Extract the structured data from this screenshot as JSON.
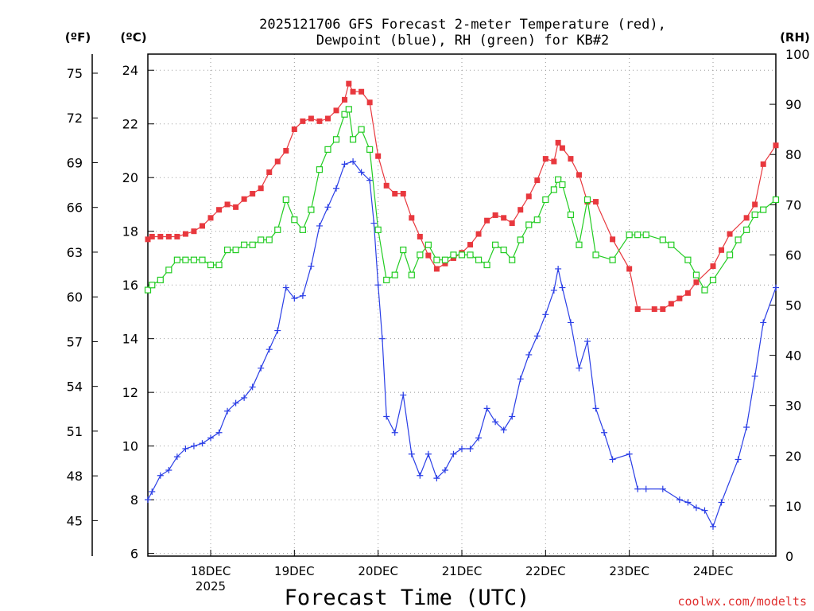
{
  "chart_data": {
    "type": "line",
    "title_line1": "2025121706 GFS Forecast 2-meter Temperature (red),",
    "title_line2": "Dewpoint (blue), RH (green) for KB#2",
    "xlabel": "Forecast Time (UTC)",
    "credit": "coolwx.com/modelts",
    "unit_f": "(ºF)",
    "unit_c": "(ºC)",
    "unit_rh": "(RH)",
    "x_ticks": [
      {
        "x": 18,
        "label": "18DEC",
        "sub": "2025"
      },
      {
        "x": 19,
        "label": "19DEC",
        "sub": ""
      },
      {
        "x": 20,
        "label": "20DEC",
        "sub": ""
      },
      {
        "x": 21,
        "label": "21DEC",
        "sub": ""
      },
      {
        "x": 22,
        "label": "22DEC",
        "sub": ""
      },
      {
        "x": 23,
        "label": "23DEC",
        "sub": ""
      },
      {
        "x": 24,
        "label": "24DEC",
        "sub": ""
      }
    ],
    "x_range": [
      17.25,
      24.75
    ],
    "c_ticks": [
      "6",
      "8",
      "10",
      "12",
      "14",
      "16",
      "18",
      "20",
      "22",
      "24"
    ],
    "c_range": [
      5.9,
      24.6
    ],
    "f_ticks": [
      "45",
      "48",
      "51",
      "54",
      "57",
      "60",
      "63",
      "66",
      "69",
      "72",
      "75"
    ],
    "rh_ticks": [
      "0",
      "10",
      "20",
      "30",
      "40",
      "50",
      "60",
      "70",
      "80",
      "90",
      "100"
    ],
    "rh_range": [
      0,
      100
    ],
    "colors": {
      "temperature": "#e8383e",
      "dewpoint": "#2a3ee6",
      "rh": "#22cc22"
    },
    "series": [
      {
        "name": "Temperature (red)",
        "units": "C",
        "points": [
          [
            17.25,
            17.7
          ],
          [
            17.3,
            17.8
          ],
          [
            17.4,
            17.8
          ],
          [
            17.5,
            17.8
          ],
          [
            17.6,
            17.8
          ],
          [
            17.7,
            17.9
          ],
          [
            17.8,
            18.0
          ],
          [
            17.9,
            18.2
          ],
          [
            18.0,
            18.5
          ],
          [
            18.1,
            18.8
          ],
          [
            18.2,
            19.0
          ],
          [
            18.3,
            18.9
          ],
          [
            18.4,
            19.2
          ],
          [
            18.5,
            19.4
          ],
          [
            18.6,
            19.6
          ],
          [
            18.7,
            20.2
          ],
          [
            18.8,
            20.6
          ],
          [
            18.9,
            21.0
          ],
          [
            19.0,
            21.8
          ],
          [
            19.1,
            22.1
          ],
          [
            19.2,
            22.2
          ],
          [
            19.3,
            22.1
          ],
          [
            19.4,
            22.2
          ],
          [
            19.5,
            22.5
          ],
          [
            19.6,
            22.9
          ],
          [
            19.65,
            23.5
          ],
          [
            19.7,
            23.2
          ],
          [
            19.8,
            23.2
          ],
          [
            19.9,
            22.8
          ],
          [
            20.0,
            20.8
          ],
          [
            20.1,
            19.7
          ],
          [
            20.2,
            19.4
          ],
          [
            20.3,
            19.4
          ],
          [
            20.4,
            18.5
          ],
          [
            20.5,
            17.8
          ],
          [
            20.6,
            17.1
          ],
          [
            20.7,
            16.6
          ],
          [
            20.8,
            16.8
          ],
          [
            20.9,
            17.0
          ],
          [
            21.0,
            17.2
          ],
          [
            21.1,
            17.5
          ],
          [
            21.2,
            17.9
          ],
          [
            21.3,
            18.4
          ],
          [
            21.4,
            18.6
          ],
          [
            21.5,
            18.5
          ],
          [
            21.6,
            18.3
          ],
          [
            21.7,
            18.8
          ],
          [
            21.8,
            19.3
          ],
          [
            21.9,
            19.9
          ],
          [
            22.0,
            20.7
          ],
          [
            22.1,
            20.6
          ],
          [
            22.15,
            21.3
          ],
          [
            22.2,
            21.1
          ],
          [
            22.3,
            20.7
          ],
          [
            22.4,
            20.1
          ],
          [
            22.5,
            19.1
          ],
          [
            22.6,
            19.1
          ],
          [
            22.8,
            17.7
          ],
          [
            23.0,
            16.6
          ],
          [
            23.1,
            15.1
          ],
          [
            23.3,
            15.1
          ],
          [
            23.4,
            15.1
          ],
          [
            23.5,
            15.3
          ],
          [
            23.6,
            15.5
          ],
          [
            23.7,
            15.7
          ],
          [
            23.8,
            16.1
          ],
          [
            24.0,
            16.7
          ],
          [
            24.1,
            17.3
          ],
          [
            24.2,
            17.9
          ],
          [
            24.4,
            18.5
          ],
          [
            24.5,
            19.0
          ],
          [
            24.6,
            20.5
          ],
          [
            24.75,
            21.2
          ]
        ]
      },
      {
        "name": "Dewpoint (blue)",
        "units": "C",
        "points": [
          [
            17.25,
            8.0
          ],
          [
            17.3,
            8.3
          ],
          [
            17.4,
            8.9
          ],
          [
            17.5,
            9.1
          ],
          [
            17.6,
            9.6
          ],
          [
            17.7,
            9.9
          ],
          [
            17.8,
            10.0
          ],
          [
            17.9,
            10.1
          ],
          [
            18.0,
            10.3
          ],
          [
            18.1,
            10.5
          ],
          [
            18.2,
            11.3
          ],
          [
            18.3,
            11.6
          ],
          [
            18.4,
            11.8
          ],
          [
            18.5,
            12.2
          ],
          [
            18.6,
            12.9
          ],
          [
            18.7,
            13.6
          ],
          [
            18.8,
            14.3
          ],
          [
            18.9,
            15.9
          ],
          [
            19.0,
            15.5
          ],
          [
            19.1,
            15.6
          ],
          [
            19.2,
            16.7
          ],
          [
            19.3,
            18.2
          ],
          [
            19.4,
            18.9
          ],
          [
            19.5,
            19.6
          ],
          [
            19.6,
            20.5
          ],
          [
            19.7,
            20.6
          ],
          [
            19.8,
            20.2
          ],
          [
            19.9,
            19.9
          ],
          [
            19.95,
            18.3
          ],
          [
            20.0,
            16.0
          ],
          [
            20.05,
            14.0
          ],
          [
            20.1,
            11.1
          ],
          [
            20.2,
            10.5
          ],
          [
            20.3,
            11.9
          ],
          [
            20.4,
            9.7
          ],
          [
            20.5,
            8.9
          ],
          [
            20.6,
            9.7
          ],
          [
            20.7,
            8.8
          ],
          [
            20.8,
            9.1
          ],
          [
            20.9,
            9.7
          ],
          [
            21.0,
            9.9
          ],
          [
            21.1,
            9.9
          ],
          [
            21.2,
            10.3
          ],
          [
            21.3,
            11.4
          ],
          [
            21.4,
            10.9
          ],
          [
            21.5,
            10.6
          ],
          [
            21.6,
            11.1
          ],
          [
            21.7,
            12.5
          ],
          [
            21.8,
            13.4
          ],
          [
            21.9,
            14.1
          ],
          [
            22.0,
            14.9
          ],
          [
            22.1,
            15.8
          ],
          [
            22.15,
            16.6
          ],
          [
            22.2,
            15.9
          ],
          [
            22.3,
            14.6
          ],
          [
            22.4,
            12.9
          ],
          [
            22.5,
            13.9
          ],
          [
            22.6,
            11.4
          ],
          [
            22.7,
            10.5
          ],
          [
            22.8,
            9.5
          ],
          [
            23.0,
            9.7
          ],
          [
            23.1,
            8.4
          ],
          [
            23.2,
            8.4
          ],
          [
            23.4,
            8.4
          ],
          [
            23.6,
            8.0
          ],
          [
            23.7,
            7.9
          ],
          [
            23.8,
            7.7
          ],
          [
            23.9,
            7.6
          ],
          [
            24.0,
            7.0
          ],
          [
            24.1,
            7.9
          ],
          [
            24.3,
            9.5
          ],
          [
            24.4,
            10.7
          ],
          [
            24.5,
            12.6
          ],
          [
            24.6,
            14.6
          ],
          [
            24.75,
            15.9
          ]
        ]
      },
      {
        "name": "RH (green)",
        "units": "%",
        "points": [
          [
            17.25,
            53
          ],
          [
            17.3,
            54
          ],
          [
            17.4,
            55
          ],
          [
            17.5,
            57
          ],
          [
            17.6,
            59
          ],
          [
            17.7,
            59
          ],
          [
            17.8,
            59
          ],
          [
            17.9,
            59
          ],
          [
            18.0,
            58
          ],
          [
            18.1,
            58
          ],
          [
            18.2,
            61
          ],
          [
            18.3,
            61
          ],
          [
            18.4,
            62
          ],
          [
            18.5,
            62
          ],
          [
            18.6,
            63
          ],
          [
            18.7,
            63
          ],
          [
            18.8,
            65
          ],
          [
            18.9,
            71
          ],
          [
            19.0,
            67
          ],
          [
            19.1,
            65
          ],
          [
            19.2,
            69
          ],
          [
            19.3,
            77
          ],
          [
            19.4,
            81
          ],
          [
            19.5,
            83
          ],
          [
            19.6,
            88
          ],
          [
            19.65,
            89
          ],
          [
            19.7,
            83
          ],
          [
            19.8,
            85
          ],
          [
            19.9,
            81
          ],
          [
            20.0,
            65
          ],
          [
            20.1,
            55
          ],
          [
            20.2,
            56
          ],
          [
            20.3,
            61
          ],
          [
            20.4,
            56
          ],
          [
            20.5,
            60
          ],
          [
            20.6,
            62
          ],
          [
            20.7,
            59
          ],
          [
            20.8,
            59
          ],
          [
            20.9,
            60
          ],
          [
            21.0,
            60
          ],
          [
            21.1,
            60
          ],
          [
            21.2,
            59
          ],
          [
            21.3,
            58
          ],
          [
            21.4,
            62
          ],
          [
            21.5,
            61
          ],
          [
            21.6,
            59
          ],
          [
            21.7,
            63
          ],
          [
            21.8,
            66
          ],
          [
            21.9,
            67
          ],
          [
            22.0,
            71
          ],
          [
            22.1,
            73
          ],
          [
            22.15,
            75
          ],
          [
            22.2,
            74
          ],
          [
            22.3,
            68
          ],
          [
            22.4,
            62
          ],
          [
            22.5,
            71
          ],
          [
            22.6,
            60
          ],
          [
            22.8,
            59
          ],
          [
            23.0,
            64
          ],
          [
            23.1,
            64
          ],
          [
            23.2,
            64
          ],
          [
            23.4,
            63
          ],
          [
            23.5,
            62
          ],
          [
            23.7,
            59
          ],
          [
            23.8,
            56
          ],
          [
            23.9,
            53
          ],
          [
            24.0,
            55
          ],
          [
            24.2,
            60
          ],
          [
            24.3,
            63
          ],
          [
            24.4,
            65
          ],
          [
            24.5,
            68
          ],
          [
            24.6,
            69
          ],
          [
            24.75,
            71
          ]
        ]
      }
    ]
  }
}
